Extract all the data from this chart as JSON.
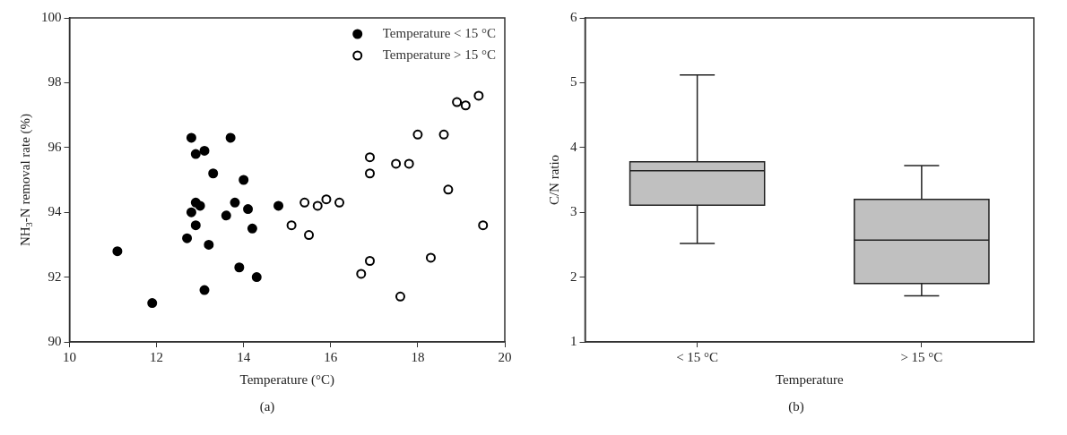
{
  "chart_data": [
    {
      "type": "scatter",
      "xlabel": "Temperature (°C)",
      "ylabel": "NH$_{3}$-N removal rate (%)",
      "xlim": [
        10,
        20
      ],
      "xticks": [
        10,
        12,
        14,
        16,
        18,
        20
      ],
      "ylim": [
        90,
        100
      ],
      "yticks": [
        90,
        92,
        94,
        96,
        98,
        100
      ],
      "grid": false,
      "legend": "top right",
      "marker": "circle",
      "annotations": [
        "(a)"
      ],
      "series": [
        {
          "name": "Temperature < 15 °C",
          "color": "#000000",
          "x": [
            11.1,
            11.9,
            12.8,
            12.9,
            13.1,
            13.3,
            13.7,
            14.0,
            12.9,
            13.0,
            12.8,
            12.9,
            12.7,
            13.2,
            13.6,
            13.8,
            14.1,
            14.2,
            13.9,
            14.3,
            13.1,
            14.8
          ],
          "values": [
            92.8,
            91.2,
            96.3,
            95.8,
            95.9,
            95.2,
            96.3,
            95.0,
            94.3,
            94.2,
            94.0,
            93.6,
            93.2,
            93.0,
            93.9,
            94.3,
            94.1,
            93.5,
            92.3,
            92.0,
            91.6,
            94.2
          ]
        },
        {
          "name": "Temperature > 15 °C",
          "color": "#ffffff",
          "x": [
            15.1,
            15.4,
            15.5,
            15.7,
            15.9,
            16.2,
            16.7,
            16.9,
            16.9,
            16.9,
            17.5,
            17.8,
            17.6,
            18.0,
            18.3,
            18.6,
            18.7,
            18.9,
            19.1,
            19.4,
            19.5
          ],
          "values": [
            93.6,
            94.3,
            93.3,
            94.2,
            94.4,
            94.3,
            92.1,
            92.5,
            95.2,
            95.7,
            95.5,
            95.5,
            91.4,
            96.4,
            92.6,
            96.4,
            94.7,
            97.4,
            97.3,
            97.6,
            93.6
          ]
        }
      ]
    },
    {
      "type": "box",
      "xlabel": "Temperature",
      "ylabel": "C/N ratio",
      "categories": [
        "< 15 °C",
        "> 15 °C"
      ],
      "ylim": [
        1,
        6
      ],
      "yticks": [
        1,
        2,
        3,
        4,
        5,
        6
      ],
      "grid": false,
      "legend": false,
      "annotations": [
        "(b)"
      ],
      "series": [
        {
          "color": "#c0c0c0",
          "boxes": [
            {
              "low": 2.52,
              "q1": 3.11,
              "median": 3.64,
              "q3": 3.78,
              "high": 5.12
            },
            {
              "low": 1.71,
              "q1": 1.9,
              "median": 2.57,
              "q3": 3.2,
              "high": 3.72
            }
          ]
        }
      ]
    }
  ]
}
